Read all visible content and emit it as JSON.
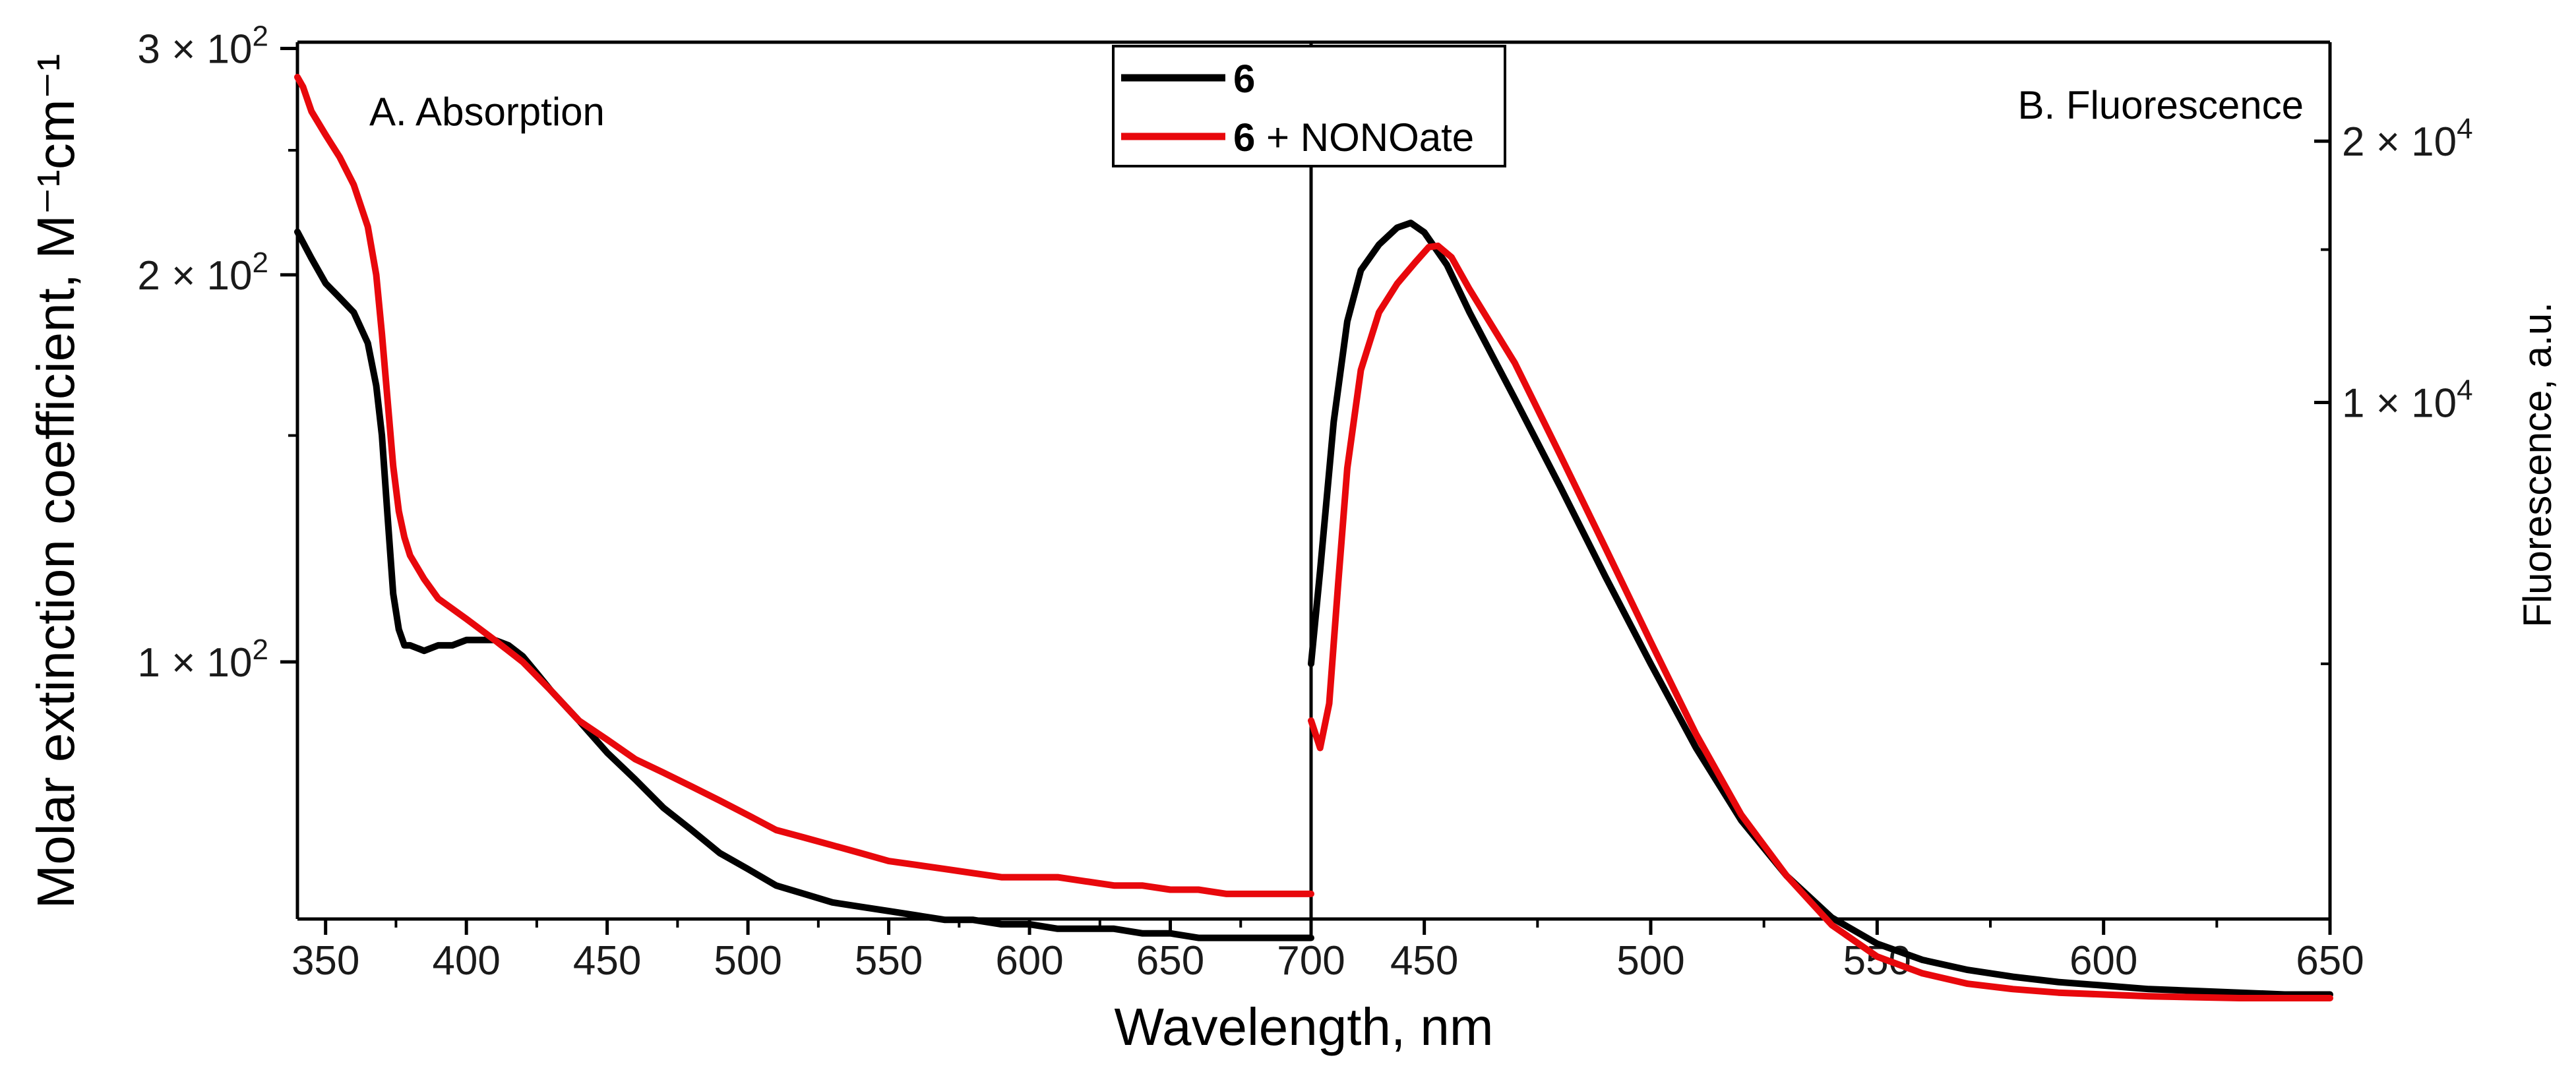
{
  "chart_data": [
    {
      "type": "line",
      "panel_label": "A. Absorption",
      "xlabel": "Wavelength, nm",
      "ylabel": "Molar extinction coefficient, M⁻¹cm⁻¹",
      "xlim": [
        340,
        700
      ],
      "ylim_log10": [
        1.8,
        2.482
      ],
      "y_scale": "log",
      "x_ticks": [
        350,
        400,
        450,
        500,
        550,
        600,
        650,
        700
      ],
      "y_ticks": [
        {
          "value": 100,
          "mantissa": "1 × 10",
          "exponent": "2"
        },
        {
          "value": 200,
          "mantissa": "2 × 10",
          "exponent": "2"
        },
        {
          "value": 300,
          "mantissa": "3 × 10",
          "exponent": "2"
        }
      ],
      "series": [
        {
          "name": "6",
          "color": "#000000",
          "x": [
            340,
            345,
            350,
            355,
            360,
            365,
            368,
            370,
            372,
            374,
            376,
            378,
            380,
            385,
            390,
            395,
            400,
            405,
            410,
            415,
            420,
            425,
            430,
            440,
            450,
            460,
            470,
            480,
            490,
            500,
            510,
            520,
            530,
            540,
            550,
            560,
            570,
            580,
            590,
            600,
            610,
            620,
            630,
            640,
            650,
            660,
            670,
            680,
            690,
            700
          ],
          "y": [
            216,
            206,
            197,
            192,
            187,
            177,
            164,
            150,
            130,
            113,
            106,
            103,
            103,
            102,
            103,
            103,
            104,
            104,
            104,
            103,
            101,
            98,
            95,
            90,
            85,
            81,
            77,
            74,
            71,
            69,
            67,
            66,
            65,
            64.5,
            64,
            63.5,
            63,
            63,
            62.5,
            62.5,
            62,
            62,
            62,
            61.5,
            61.5,
            61,
            61,
            61,
            61,
            61
          ]
        },
        {
          "name": "6 + NONOate",
          "color": "#e8080c",
          "x": [
            340,
            342,
            345,
            350,
            355,
            360,
            365,
            368,
            370,
            372,
            374,
            376,
            378,
            380,
            385,
            390,
            400,
            410,
            420,
            430,
            440,
            450,
            460,
            470,
            480,
            490,
            500,
            510,
            520,
            530,
            540,
            550,
            560,
            570,
            580,
            590,
            600,
            610,
            620,
            630,
            640,
            650,
            660,
            670,
            680,
            690,
            700
          ],
          "y": [
            285,
            280,
            268,
            257,
            247,
            235,
            218,
            200,
            180,
            160,
            142,
            131,
            125,
            121,
            116,
            112,
            108,
            104,
            100,
            95,
            90,
            87,
            84,
            82,
            80,
            78,
            76,
            74,
            73,
            72,
            71,
            70,
            69.5,
            69,
            68.5,
            68,
            68,
            68,
            67.5,
            67,
            67,
            66.5,
            66.5,
            66,
            66,
            66,
            66
          ]
        }
      ]
    },
    {
      "type": "line",
      "panel_label": "B. Fluorescence",
      "xlabel": "Wavelength, nm",
      "ylabel": "Fluorescence, a.u.",
      "xlim": [
        425,
        650
      ],
      "ylim_log10": [
        3.405,
        4.415
      ],
      "y_scale": "log",
      "x_ticks": [
        450,
        500,
        550,
        600,
        650
      ],
      "y_ticks": [
        {
          "value": 10000,
          "mantissa": "1 × 10",
          "exponent": "4"
        },
        {
          "value": 20000,
          "mantissa": "2 × 10",
          "exponent": "4"
        }
      ],
      "y_minor_ticks": [
        5000,
        15000
      ],
      "series": [
        {
          "name": "6",
          "color": "#000000",
          "x": [
            425,
            427,
            430,
            433,
            436,
            440,
            444,
            447,
            450,
            455,
            460,
            470,
            480,
            490,
            500,
            510,
            520,
            530,
            540,
            550,
            560,
            570,
            580,
            590,
            600,
            610,
            620,
            630,
            640,
            650
          ],
          "y": [
            5000,
            6400,
            9500,
            12400,
            14200,
            15200,
            15900,
            16100,
            15700,
            14400,
            12700,
            10100,
            8000,
            6300,
            5000,
            4000,
            3300,
            2850,
            2550,
            2380,
            2280,
            2220,
            2180,
            2150,
            2130,
            2110,
            2100,
            2090,
            2080,
            2080
          ]
        },
        {
          "name": "6 + NONOate",
          "color": "#e8080c",
          "x": [
            425,
            427,
            429,
            431,
            433,
            436,
            440,
            444,
            448,
            451,
            453,
            456,
            460,
            470,
            480,
            490,
            500,
            510,
            520,
            530,
            540,
            550,
            560,
            570,
            580,
            590,
            600,
            610,
            620,
            630,
            640,
            650
          ],
          "y": [
            4300,
            4000,
            4500,
            6200,
            8400,
            10900,
            12700,
            13700,
            14500,
            15100,
            15150,
            14700,
            13500,
            11100,
            8700,
            6800,
            5300,
            4150,
            3350,
            2850,
            2500,
            2300,
            2200,
            2140,
            2110,
            2090,
            2080,
            2070,
            2065,
            2060,
            2060,
            2060
          ]
        }
      ]
    }
  ],
  "legend": {
    "entries": [
      {
        "bold": "6",
        "rest": "",
        "color": "#000000"
      },
      {
        "bold": "6",
        "rest": " + NONOate",
        "color": "#e8080c"
      }
    ]
  }
}
